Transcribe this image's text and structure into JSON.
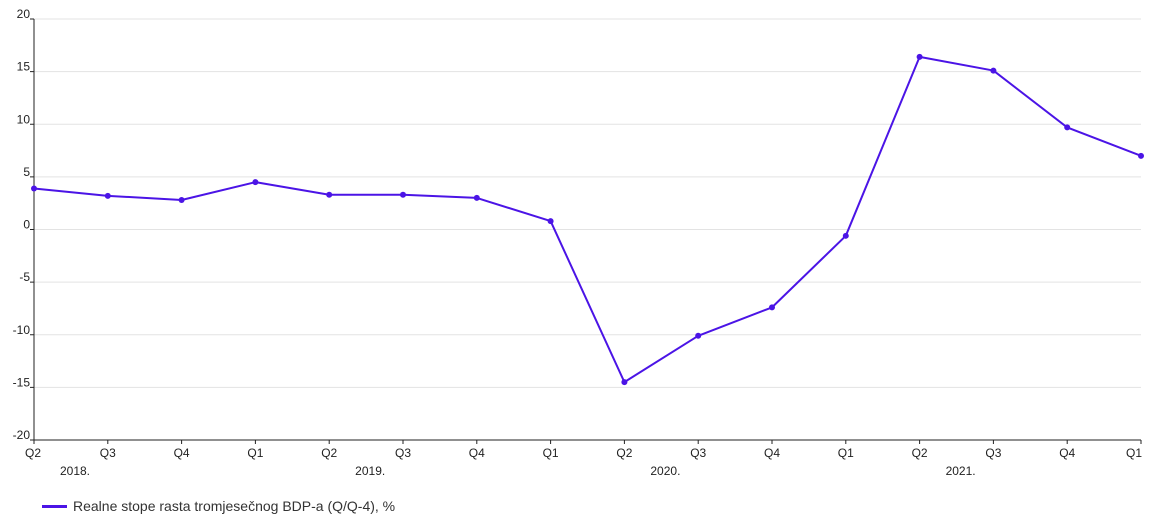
{
  "chart_data": {
    "type": "line",
    "x": [
      "Q2",
      "Q3",
      "Q4",
      "Q1",
      "Q2",
      "Q3",
      "Q4",
      "Q1",
      "Q2",
      "Q3",
      "Q4",
      "Q1",
      "Q2",
      "Q3",
      "Q4",
      "Q1"
    ],
    "years": [
      {
        "label": "2018.",
        "quarter_index": 0
      },
      {
        "label": "2019.",
        "quarter_index": 4
      },
      {
        "label": "2020.",
        "quarter_index": 8
      },
      {
        "label": "2021.",
        "quarter_index": 12
      }
    ],
    "series": [
      {
        "name": "Realne stope rasta tromjesečnog BDP-a (Q/Q-4), %",
        "color": "#4b14e6",
        "values": [
          3.9,
          3.2,
          2.8,
          4.5,
          3.3,
          3.3,
          3.0,
          0.8,
          -14.5,
          -10.1,
          -7.4,
          -0.6,
          16.4,
          15.1,
          9.7,
          7.0
        ]
      }
    ],
    "yticks": [
      "20",
      "15",
      "10",
      "5",
      "0",
      "-5",
      "-10",
      "-15",
      "-20"
    ],
    "ylim": [
      -20,
      20
    ],
    "grid": true,
    "legend_position": "bottom-left"
  }
}
